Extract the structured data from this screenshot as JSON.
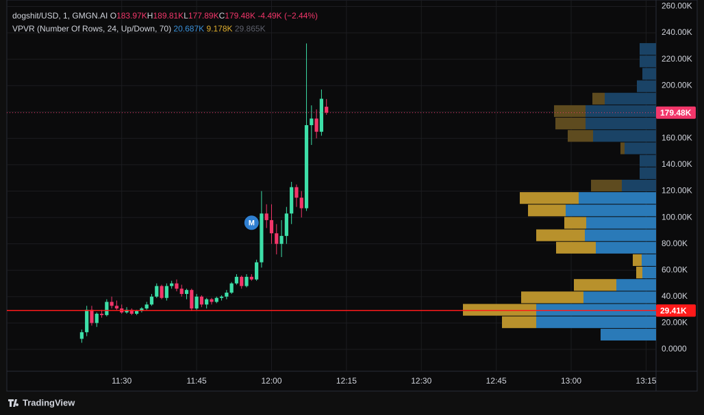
{
  "chart_data": {
    "type": "candlestick",
    "symbol": "dogshit/USD, 1, GMGN.AI",
    "ohlc_legend": [
      {
        "label": "O",
        "value": "183.97K"
      },
      {
        "label": "H",
        "value": "189.81K"
      },
      {
        "label": "L",
        "value": "177.89K"
      },
      {
        "label": "C",
        "value": "179.48K"
      }
    ],
    "change": "-4.49K (−2.44%)",
    "indicator": {
      "label": "VPVR (Number Of Rows, 24, Up/Down, 70)",
      "up": "20.687K",
      "down": "9.178K",
      "total": "29.865K"
    },
    "x": [
      "11:22",
      "11:23",
      "11:24",
      "11:25",
      "11:26",
      "11:27",
      "11:28",
      "11:29",
      "11:30",
      "11:31",
      "11:32",
      "11:33",
      "11:34",
      "11:35",
      "11:36",
      "11:37",
      "11:38",
      "11:39",
      "11:40",
      "11:41",
      "11:42",
      "11:43",
      "11:44",
      "11:45",
      "11:46",
      "11:47",
      "11:48",
      "11:49",
      "11:50",
      "11:51",
      "11:52",
      "11:53",
      "11:54",
      "11:55",
      "11:56",
      "11:57",
      "11:58",
      "11:59",
      "12:00",
      "12:01",
      "12:02",
      "12:03",
      "12:04",
      "12:05",
      "12:06",
      "12:07",
      "12:08",
      "12:09",
      "12:10",
      "12:11"
    ],
    "open": [
      8,
      13,
      30,
      20,
      27,
      26,
      36,
      33,
      31,
      28,
      30,
      27,
      29,
      31,
      34,
      40,
      48,
      39,
      48,
      50,
      46,
      42,
      45,
      31,
      40,
      34,
      38,
      36,
      39,
      40,
      43,
      50,
      55,
      48,
      55,
      53,
      66,
      103,
      98,
      88,
      80,
      86,
      103,
      123,
      115,
      107,
      170,
      175,
      165,
      183.97
    ],
    "high": [
      15,
      33,
      33,
      28,
      30,
      38,
      40,
      37,
      34,
      32,
      31,
      30,
      32,
      36,
      42,
      50,
      49,
      50,
      52,
      53,
      49,
      46,
      46,
      42,
      41,
      39,
      39,
      40,
      41,
      45,
      51,
      57,
      56,
      57,
      57,
      68,
      120,
      110,
      110,
      95,
      98,
      108,
      127,
      125,
      120,
      232,
      185,
      182,
      197,
      189.81
    ],
    "low": [
      5,
      10,
      18,
      17,
      24,
      25,
      31,
      30,
      27,
      27,
      26,
      26,
      28,
      30,
      33,
      39,
      38,
      37,
      46,
      44,
      40,
      38,
      29,
      30,
      32,
      31,
      34,
      35,
      37,
      38,
      42,
      49,
      46,
      47,
      52,
      52,
      62,
      92,
      80,
      72,
      70,
      80,
      95,
      108,
      100,
      105,
      155,
      160,
      162,
      177.89
    ],
    "close": [
      13,
      30,
      20,
      27,
      26,
      36,
      33,
      31,
      28,
      30,
      27,
      29,
      31,
      34,
      40,
      48,
      39,
      48,
      50,
      46,
      42,
      45,
      31,
      40,
      34,
      38,
      36,
      39,
      40,
      43,
      50,
      55,
      48,
      55,
      53,
      66,
      103,
      98,
      88,
      80,
      86,
      103,
      123,
      115,
      107,
      170,
      175,
      165,
      190,
      179.48
    ],
    "up_color": "#3ddfa8",
    "down_color": "#f2366a",
    "xlim": [
      "11:07",
      "13:17"
    ],
    "xticks": [
      "11:30",
      "11:45",
      "12:00",
      "12:15",
      "12:30",
      "12:45",
      "13:00",
      "13:15"
    ],
    "ylim": [
      -16.6,
      264.9
    ],
    "yticks": [
      {
        "value": 0,
        "label": "0.0000"
      },
      {
        "value": 20,
        "label": "20.00K"
      },
      {
        "value": 40,
        "label": "40.00K"
      },
      {
        "value": 60,
        "label": "60.00K"
      },
      {
        "value": 80,
        "label": "80.00K"
      },
      {
        "value": 100,
        "label": "100.00K"
      },
      {
        "value": 120,
        "label": "120.00K"
      },
      {
        "value": 140,
        "label": "140.00K"
      },
      {
        "value": 160,
        "label": "160.00K"
      },
      {
        "value": 180,
        "label": "180.00K"
      },
      {
        "value": 200,
        "label": "200.00K"
      },
      {
        "value": 220,
        "label": "220.00K"
      },
      {
        "value": 240,
        "label": "240.00K"
      },
      {
        "value": 260,
        "label": "260.00K"
      }
    ],
    "grid": true,
    "price_lines": [
      {
        "value": 179.48,
        "label": "179.48K",
        "color": "#f2366a",
        "style": "dotted"
      },
      {
        "value": 29.41,
        "label": "29.41K",
        "color": "#ff1a1a",
        "style": "solid"
      }
    ],
    "markers": [
      {
        "x": "11:56",
        "price": 96,
        "label": "M",
        "color": "#2f7fd1"
      }
    ],
    "profile": {
      "range": [
        6.2,
        232.2
      ],
      "up": [
        81,
        175,
        175,
        106,
        58,
        20,
        21,
        88,
        104,
        102,
        132,
        113,
        50,
        24,
        24,
        46,
        92,
        103,
        103,
        75,
        28,
        20,
        24,
        24
      ],
      "down": [
        0,
        50,
        107,
        91,
        62,
        9,
        13,
        58,
        71,
        32,
        55,
        86,
        45,
        0,
        0,
        6,
        37,
        44,
        46,
        18,
        0,
        0,
        0,
        0
      ],
      "value_area": [
        0,
        11
      ],
      "up_color": "#2a7ab8",
      "down_color": "#b8912c",
      "up_color_outside": "#1a4366",
      "down_color_outside": "#5e4b1f"
    },
    "brand": "TradingView"
  }
}
